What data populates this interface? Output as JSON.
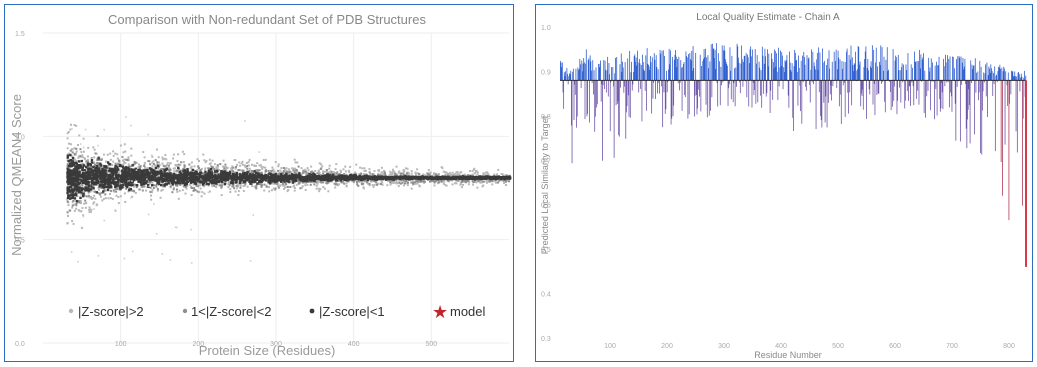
{
  "chart_data": [
    {
      "type": "scatter",
      "title": "Comparison with Non-redundant Set of PDB Structures",
      "xlabel": "Protein Size (Residues)",
      "ylabel": "Normalized QMEAN4 Score",
      "xlim": [
        0,
        600
      ],
      "ylim": [
        0.0,
        1.5
      ],
      "x_ticks": [
        "100",
        "200",
        "300",
        "400",
        "500"
      ],
      "y_ticks": [
        "0.0",
        "0.5",
        "1.0",
        "1.5"
      ],
      "grid": true,
      "legend_position": "bottom",
      "series": [
        {
          "name": "|Z-score|>2",
          "color": "#b8b8b8",
          "band": {
            "x": [
              30,
              70,
              150,
              300,
              450,
              600
            ],
            "lower": [
              0.62,
              0.7,
              0.74,
              0.76,
              0.77,
              0.78
            ],
            "upper": [
              0.98,
              0.93,
              0.89,
              0.86,
              0.84,
              0.83
            ]
          }
        },
        {
          "name": "1<|Z-score|<2",
          "color": "#8f8f8f",
          "band": {
            "x": [
              30,
              70,
              150,
              300,
              450,
              600
            ],
            "lower": [
              0.68,
              0.74,
              0.76,
              0.77,
              0.78,
              0.79
            ],
            "upper": [
              0.9,
              0.88,
              0.86,
              0.84,
              0.82,
              0.81
            ]
          }
        },
        {
          "name": "|Z-score|<1",
          "color": "#3a3a3a",
          "band": {
            "x": [
              30,
              70,
              150,
              300,
              450,
              600
            ],
            "lower": [
              0.72,
              0.76,
              0.78,
              0.79,
              0.8,
              0.8
            ],
            "upper": [
              0.87,
              0.86,
              0.84,
              0.82,
              0.81,
              0.81
            ]
          }
        }
      ],
      "model_marker": {
        "name": "model",
        "color": "#c0272d"
      }
    },
    {
      "type": "bar",
      "title": "Local Quality Estimate - Chain A",
      "xlabel": "Residue Number",
      "ylabel": "Predicted Local Similarity to Target",
      "xlim": [
        0,
        720
      ],
      "ylim": [
        0.3,
        1.0
      ],
      "x_ticks": [
        "100",
        "200",
        "300",
        "400",
        "500",
        "600",
        "700",
        "800"
      ],
      "y_ticks": [
        "0.3",
        "0.4",
        "0.5",
        "0.6",
        "0.7",
        "0.8",
        "0.9",
        "1.0"
      ],
      "baseline": 0.88,
      "positive_color": "#2f5ed0",
      "negative_color": "#6d55a8",
      "low_color": "#b23a58",
      "profile": [
        {
          "x": 0,
          "low": 0.88,
          "high": 0.93
        },
        {
          "x": 15,
          "low": 0.66,
          "high": 0.9
        },
        {
          "x": 40,
          "low": 0.74,
          "high": 0.95
        },
        {
          "x": 80,
          "low": 0.67,
          "high": 0.93
        },
        {
          "x": 120,
          "low": 0.78,
          "high": 0.96
        },
        {
          "x": 180,
          "low": 0.77,
          "high": 0.95
        },
        {
          "x": 240,
          "low": 0.8,
          "high": 0.97
        },
        {
          "x": 300,
          "low": 0.82,
          "high": 0.96
        },
        {
          "x": 370,
          "low": 0.75,
          "high": 0.95
        },
        {
          "x": 430,
          "low": 0.78,
          "high": 0.96
        },
        {
          "x": 500,
          "low": 0.8,
          "high": 0.96
        },
        {
          "x": 560,
          "low": 0.8,
          "high": 0.95
        },
        {
          "x": 620,
          "low": 0.73,
          "high": 0.94
        },
        {
          "x": 670,
          "low": 0.64,
          "high": 0.92
        },
        {
          "x": 720,
          "low": 0.46,
          "high": 0.9
        }
      ]
    }
  ]
}
